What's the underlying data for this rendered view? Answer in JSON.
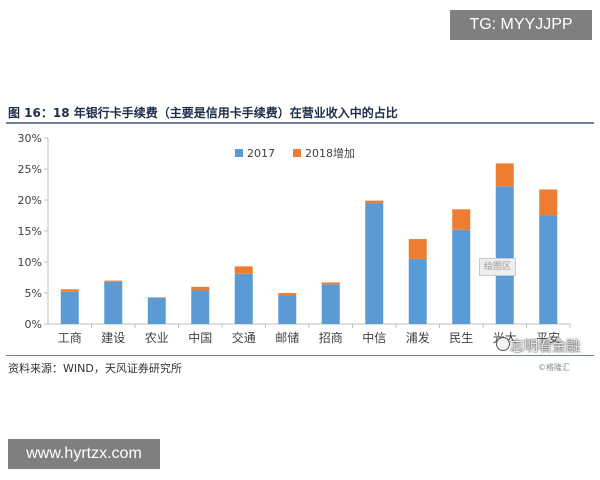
{
  "header": {
    "badge_text": "TG: MYYJJPP"
  },
  "figure": {
    "title": "图 16：18 年银行卡手续费（主要是信用卡手续费）在营业收入中的占比",
    "source": "资料来源：WIND，天风证券研究所",
    "credit": "©格隆汇"
  },
  "watermarks": {
    "stamp": "绘图区",
    "brand": "志明看金融",
    "brand_icon": "wechat-icon"
  },
  "footer": {
    "badge_text": "www.hyrtzx.com"
  },
  "colors": {
    "series_2017": "#5b9bd5",
    "series_2018": "#ed7d31",
    "axis": "#bfbfbf",
    "text": "#404040"
  },
  "chart_data": {
    "type": "bar",
    "stacked": true,
    "title": "",
    "xlabel": "",
    "ylabel": "",
    "ylim": [
      0,
      30
    ],
    "yticks": [
      "0%",
      "5%",
      "10%",
      "15%",
      "20%",
      "25%",
      "30%"
    ],
    "grid": false,
    "legend_position": "top-right",
    "categories": [
      "工商",
      "建设",
      "农业",
      "中国",
      "交通",
      "邮储",
      "招商",
      "中信",
      "浦发",
      "民生",
      "光大",
      "平安"
    ],
    "series": [
      {
        "name": "2017",
        "color": "#5b9bd5",
        "values": [
          5.2,
          6.8,
          4.2,
          5.4,
          8.1,
          4.6,
          6.4,
          19.5,
          10.5,
          15.2,
          22.2,
          17.5
        ]
      },
      {
        "name": "2018增加",
        "color": "#ed7d31",
        "values": [
          0.4,
          0.2,
          0.1,
          0.6,
          1.2,
          0.4,
          0.3,
          0.4,
          3.2,
          3.3,
          3.7,
          4.2
        ]
      }
    ]
  }
}
